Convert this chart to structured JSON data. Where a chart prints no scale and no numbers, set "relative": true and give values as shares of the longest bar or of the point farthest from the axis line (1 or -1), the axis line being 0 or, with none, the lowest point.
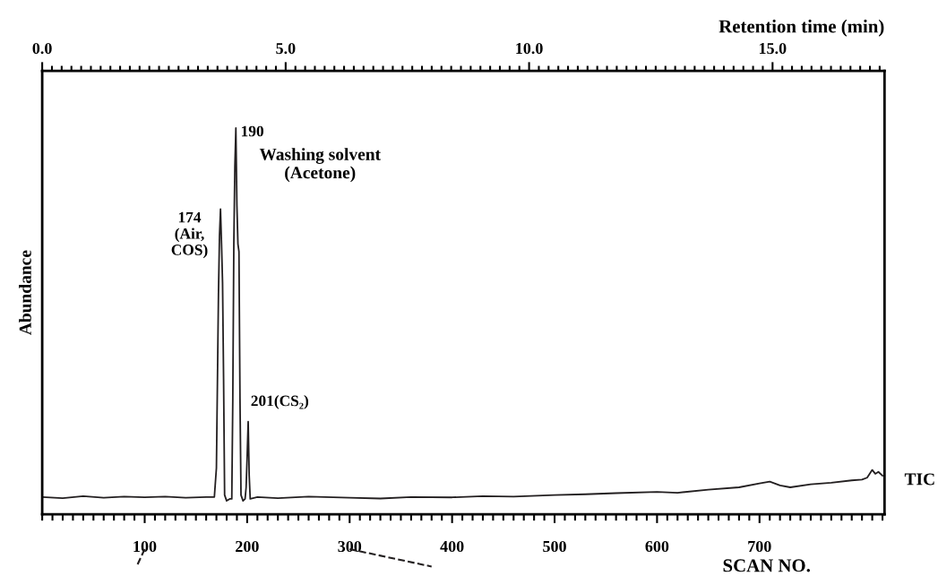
{
  "chart_data": {
    "type": "line",
    "relative": true,
    "xlabel": "SCAN NO.",
    "ylabel": "Abundance",
    "x2label": "Retention time (min)",
    "xlim": [
      0,
      822
    ],
    "xticks": [
      100,
      200,
      300,
      400,
      500,
      600,
      700
    ],
    "x2lim": [
      0,
      17.3
    ],
    "x2ticks": [
      {
        "value": 0,
        "label": "0.0"
      },
      {
        "value": 5,
        "label": "5.0"
      },
      {
        "value": 10,
        "label": "10.0"
      },
      {
        "value": 15,
        "label": "15.0"
      }
    ],
    "tick_labels": "x",
    "grid": false,
    "legend": false,
    "marker": "none",
    "line_style": "solid",
    "series": [
      {
        "name": "TIC",
        "color": "#231f20",
        "x": [
          0,
          20,
          40,
          60,
          80,
          100,
          120,
          140,
          160,
          168,
          170,
          172,
          173,
          174,
          175,
          176,
          177,
          178,
          180,
          183,
          185,
          186,
          187,
          188,
          189,
          190,
          191,
          192,
          193,
          194,
          196,
          198,
          199,
          200,
          201,
          202,
          203,
          210,
          230,
          260,
          300,
          330,
          360,
          400,
          430,
          460,
          500,
          530,
          560,
          600,
          620,
          650,
          680,
          700,
          710,
          720,
          730,
          750,
          770,
          790,
          800,
          805,
          810,
          813,
          816,
          820
        ],
        "values": [
          0.045,
          0.042,
          0.047,
          0.043,
          0.046,
          0.044,
          0.046,
          0.043,
          0.045,
          0.045,
          0.12,
          0.57,
          0.72,
          0.79,
          0.7,
          0.6,
          0.35,
          0.05,
          0.035,
          0.04,
          0.04,
          0.3,
          0.7,
          0.9,
          1.0,
          0.8,
          0.7,
          0.68,
          0.3,
          0.05,
          0.035,
          0.04,
          0.07,
          0.15,
          0.24,
          0.1,
          0.04,
          0.045,
          0.042,
          0.046,
          0.043,
          0.041,
          0.045,
          0.044,
          0.047,
          0.046,
          0.05,
          0.052,
          0.055,
          0.058,
          0.056,
          0.064,
          0.07,
          0.08,
          0.085,
          0.075,
          0.07,
          0.078,
          0.082,
          0.088,
          0.09,
          0.095,
          0.115,
          0.105,
          0.11,
          0.1
        ]
      }
    ],
    "annotations": [
      {
        "text": "190",
        "x": 190,
        "y": 1.0
      },
      {
        "text": "Washing solvent\n(Acetone)",
        "x": 190,
        "y": 1.0
      },
      {
        "text": "174\n(Air,\nCOS)",
        "x": 174,
        "y": 0.79
      },
      {
        "text": "201(CS₂)",
        "x": 201,
        "y": 0.24
      }
    ]
  }
}
